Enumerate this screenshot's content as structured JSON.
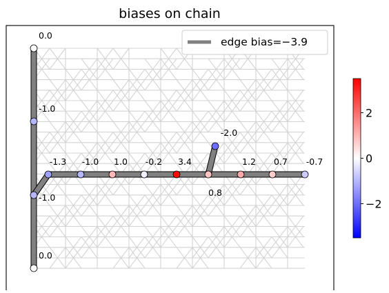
{
  "chart_data": {
    "type": "graph",
    "title": "biases on chain",
    "legend": {
      "label": "edge bias=−3.9",
      "color": "#808080",
      "placement": "top-right",
      "edge_bias": -3.9
    },
    "colorbar": {
      "colormap": "bwr",
      "range": [
        -3.5,
        3.5
      ],
      "ticks": [
        -2,
        0,
        2
      ],
      "tick_labels": [
        "−2",
        "0",
        "2"
      ]
    },
    "background_graph": {
      "color": "#d3d3d3",
      "description": "dense grid of background edges"
    },
    "chain_nodes": [
      {
        "id": "t0",
        "bias": 0.0,
        "label": "0.0"
      },
      {
        "id": "t1",
        "bias": -1.0,
        "label": "-1.0"
      },
      {
        "id": "j",
        "bias": -1.0,
        "label": "-1.0"
      },
      {
        "id": "b0",
        "bias": 0.0,
        "label": "0.0"
      },
      {
        "id": "h1",
        "bias": -1.3,
        "label": "-1.3"
      },
      {
        "id": "h2",
        "bias": -1.0,
        "label": "-1.0"
      },
      {
        "id": "h3",
        "bias": 1.0,
        "label": "1.0"
      },
      {
        "id": "h4",
        "bias": -0.2,
        "label": "-0.2"
      },
      {
        "id": "h5",
        "bias": 3.4,
        "label": "3.4"
      },
      {
        "id": "h6",
        "bias": 0.8,
        "label": "0.8"
      },
      {
        "id": "h7",
        "bias": 1.2,
        "label": "1.2"
      },
      {
        "id": "h8",
        "bias": 0.7,
        "label": "0.7"
      },
      {
        "id": "h9",
        "bias": -0.7,
        "label": "-0.7"
      },
      {
        "id": "br",
        "bias": -2.0,
        "label": "-2.0"
      }
    ],
    "chain_edges": [
      [
        "t0",
        "t1"
      ],
      [
        "t1",
        "j"
      ],
      [
        "j",
        "b0"
      ],
      [
        "j",
        "h1"
      ],
      [
        "h1",
        "h2"
      ],
      [
        "h2",
        "h3"
      ],
      [
        "h3",
        "h4"
      ],
      [
        "h4",
        "h5"
      ],
      [
        "h5",
        "h6"
      ],
      [
        "h6",
        "h7"
      ],
      [
        "h7",
        "h8"
      ],
      [
        "h8",
        "h9"
      ],
      [
        "h6",
        "br"
      ]
    ]
  }
}
